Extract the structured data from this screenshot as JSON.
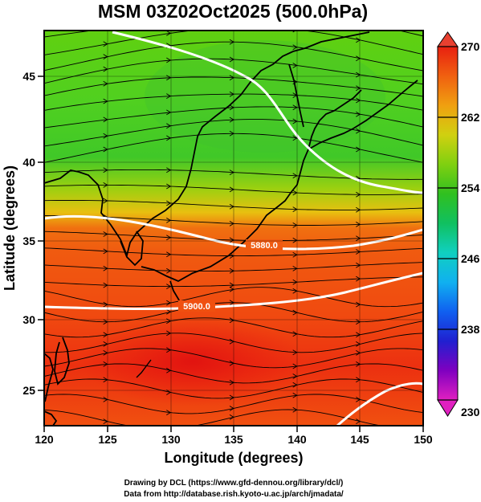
{
  "title": "MSM 03Z02Oct2025 (500.0hPa)",
  "xlabel": "Longitude (degrees)",
  "ylabel": "Latitude  (degrees)",
  "x_ticks": [
    "120",
    "125",
    "130",
    "135",
    "140",
    "145",
    "150"
  ],
  "y_ticks": [
    "25",
    "30",
    "35",
    "40",
    "45"
  ],
  "colorbar": {
    "ticks": [
      "270",
      "262",
      "254",
      "246",
      "238",
      "230"
    ],
    "min": 230,
    "max": 270,
    "palette": [
      "#e020c0",
      "#8000c0",
      "#2020d0",
      "#1060f0",
      "#10b0f0",
      "#10d0c0",
      "#10c060",
      "#30c020",
      "#80d010",
      "#d0d010",
      "#f0a010",
      "#f06010",
      "#e82010"
    ]
  },
  "contour_labels": [
    "5880.0",
    "5900.0"
  ],
  "credits": {
    "line1": "Drawing by DCL (https://www.gfd-dennou.org/library/dcl/)",
    "line2": "Data from http://database.rish.kyoto-u.ac.jp/arch/jmadata/"
  },
  "chart_data": {
    "type": "heatmap",
    "title": "MSM 03Z02Oct2025 (500.0hPa)",
    "xlabel": "Longitude (degrees)",
    "ylabel": "Latitude  (degrees)",
    "xlim": [
      120,
      150
    ],
    "ylim": [
      22.5,
      47.5
    ],
    "colorbar_range": [
      230,
      270
    ],
    "colorbar_ticks": [
      230,
      238,
      246,
      254,
      262,
      270
    ],
    "overlays": [
      "streamlines",
      "coastlines",
      "contour lines"
    ],
    "contour_levels": [
      5880.0,
      5900.0
    ]
  }
}
